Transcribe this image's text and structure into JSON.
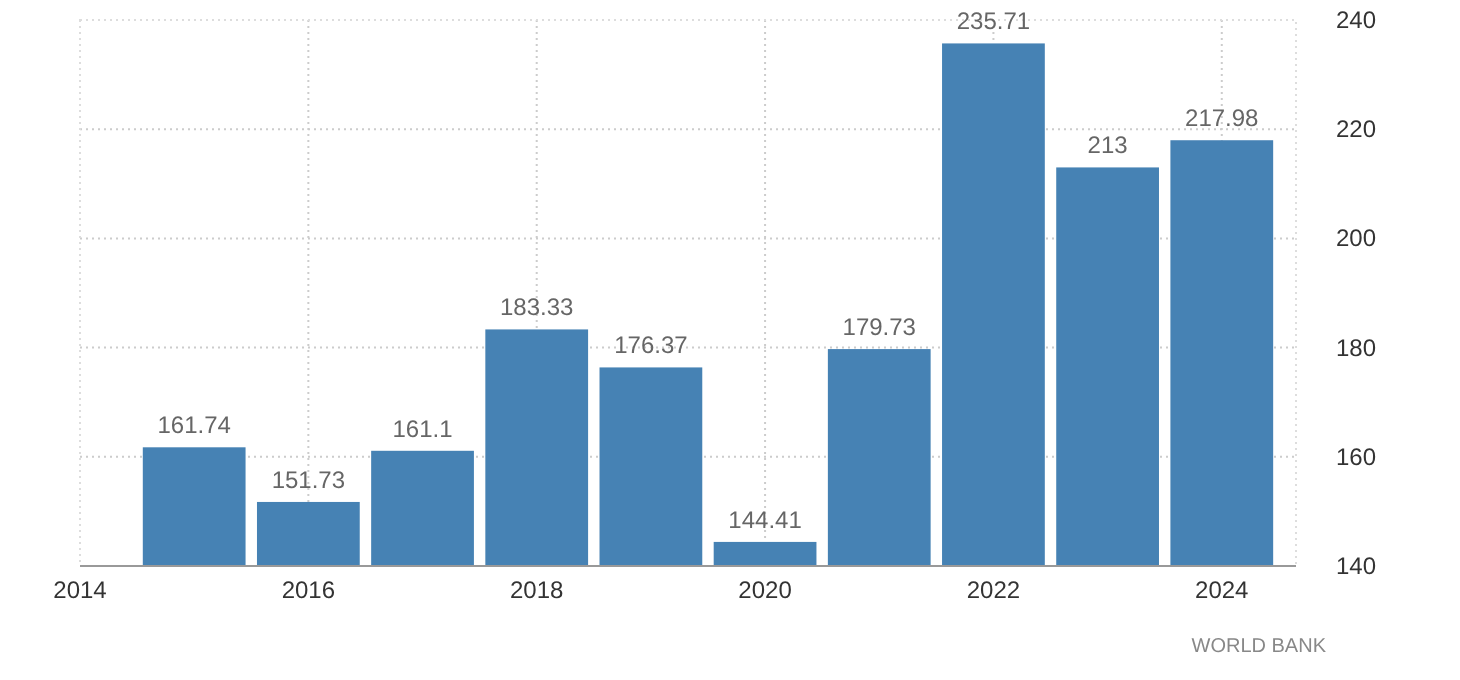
{
  "chart_data": {
    "type": "bar",
    "x": [
      2015,
      2016,
      2017,
      2018,
      2019,
      2020,
      2021,
      2022,
      2023,
      2024
    ],
    "values": [
      161.74,
      151.73,
      161.1,
      183.33,
      176.37,
      144.41,
      179.73,
      235.71,
      213,
      217.98
    ],
    "color": "#4682b4",
    "data_labels": true,
    "xlim": [
      2014,
      2024.65
    ],
    "xticks": [
      2014,
      2016,
      2018,
      2020,
      2022,
      2024
    ],
    "ylim": [
      140,
      240
    ],
    "yticks": [
      140,
      160,
      180,
      200,
      220,
      240
    ],
    "grid": true,
    "annotations": [
      "WORLD BANK"
    ]
  }
}
